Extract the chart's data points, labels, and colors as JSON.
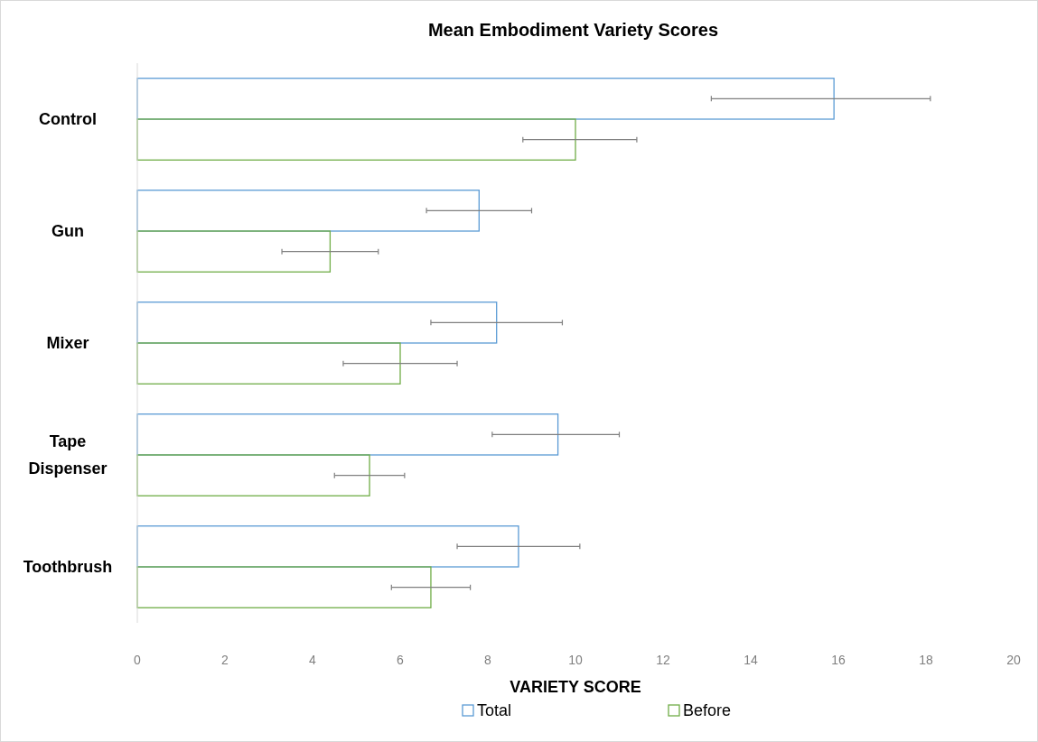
{
  "chart_data": {
    "type": "bar",
    "orientation": "horizontal",
    "title": "Mean Embodiment Variety Scores",
    "xlabel": "VARIETY SCORE",
    "categories": [
      "Control",
      "Gun",
      "Mixer",
      "Tape Dispenser",
      "Toothbrush"
    ],
    "series": [
      {
        "name": "Total",
        "color": "#5b9bd5",
        "values": [
          15.9,
          7.8,
          8.2,
          9.6,
          8.7
        ],
        "errors": [
          [
            13.1,
            18.1
          ],
          [
            6.6,
            9.0
          ],
          [
            6.7,
            9.7
          ],
          [
            8.1,
            11.0
          ],
          [
            7.3,
            10.1
          ]
        ]
      },
      {
        "name": "Before",
        "color": "#70ad47",
        "values": [
          10.0,
          4.4,
          6.0,
          5.3,
          6.7
        ],
        "errors": [
          [
            8.8,
            11.4
          ],
          [
            3.3,
            5.5
          ],
          [
            4.7,
            7.3
          ],
          [
            4.5,
            6.1
          ],
          [
            5.8,
            7.6
          ]
        ]
      }
    ],
    "xlim": [
      0,
      20
    ],
    "xticks": [
      0,
      2,
      4,
      6,
      8,
      10,
      12,
      14,
      16,
      18,
      20
    ],
    "grid": false,
    "legend": "bottom"
  }
}
